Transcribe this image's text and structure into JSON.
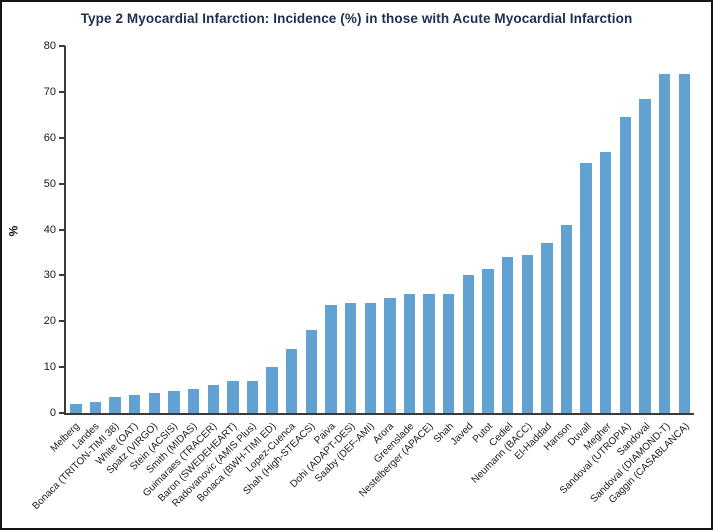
{
  "chart_data": {
    "type": "bar",
    "title": "Type 2 Myocardial Infarction: Incidence (%) in those with Acute Myocardial Infarction",
    "xlabel": "",
    "ylabel": "%",
    "ylim": [
      0,
      80
    ],
    "yticks": [
      0,
      10,
      20,
      30,
      40,
      50,
      60,
      70,
      80
    ],
    "grid": false,
    "legend": "none",
    "bar_color": "#62a2d2",
    "categories": [
      "Melberg",
      "Landes",
      "Bonaca (TRITON-TIMI 38)",
      "White (OAT)",
      "Spatz (VIRGO)",
      "Stein (ACSIS)",
      "Smith (MIDAS)",
      "Guimaraes (TRACER)",
      "Baron (SWEDEHEART)",
      "Radovanovic (AMIS Plus)",
      "Bonaca (BWH-TIMI ED)",
      "Lopez-Cuenca",
      "Shah (High-STEACS)",
      "Paiva",
      "Dohi (ADAPT-DES)",
      "Saaby (DEF-AMI)",
      "Arora",
      "Greenslade",
      "Nestelberger (APACE)",
      "Shah",
      "Javed",
      "Putot",
      "Cediel",
      "Neumann (BACC)",
      "El-Haddad",
      "Hanson",
      "Duvall",
      "Megher",
      "Sandoval (UTROPIA)",
      "Sandoval",
      "Sandoval (DIAMOND-T)",
      "Gaggin (CASABLANCA)"
    ],
    "values": [
      2,
      2.5,
      3.4,
      4,
      4.4,
      4.8,
      5.2,
      6,
      7,
      7,
      10,
      14,
      18,
      23.5,
      24,
      24,
      25,
      26,
      26,
      26,
      30,
      31.5,
      34,
      34.5,
      37,
      41,
      54.5,
      57,
      64.5,
      68.5,
      74,
      74
    ]
  }
}
